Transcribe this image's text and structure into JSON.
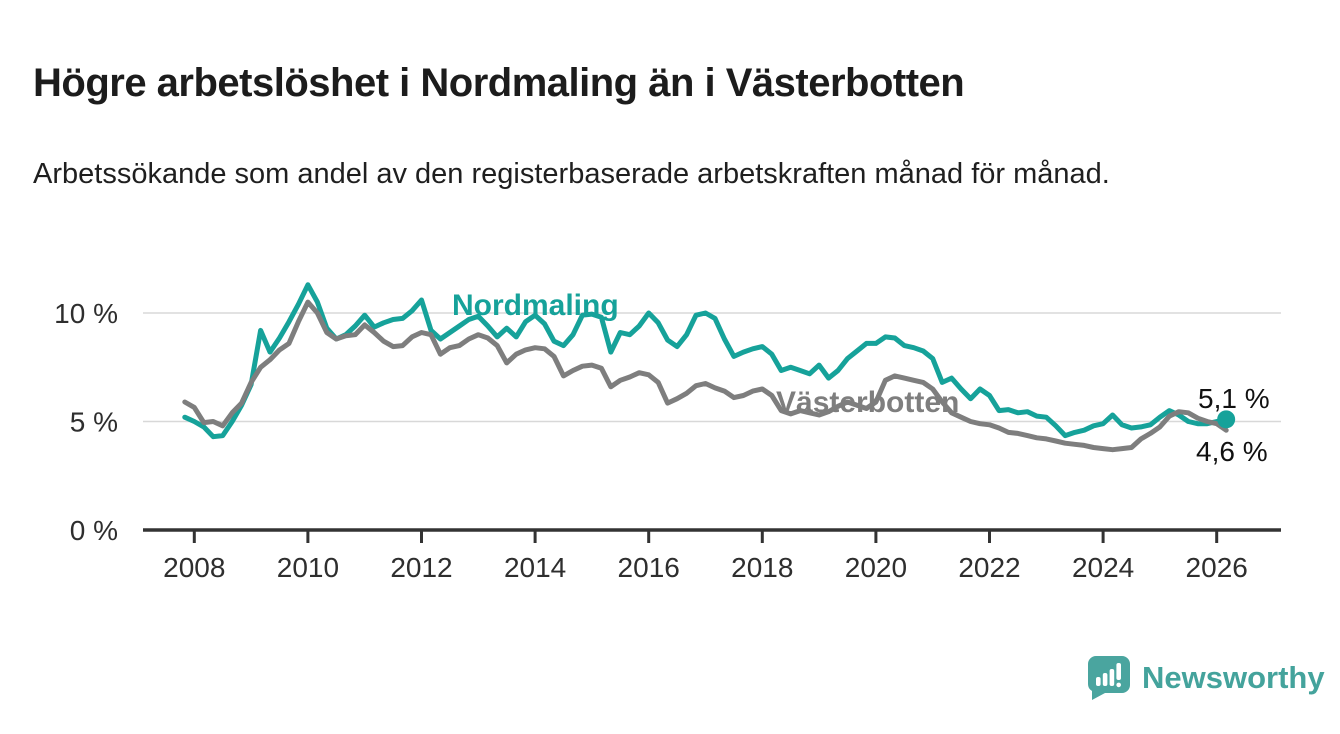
{
  "title": "Högre arbetslöshet i Nordmaling än i Västerbotten",
  "subtitle": "Arbetssökande som andel av den registerbaserade arbetskraften månad för månad.",
  "chart_data": {
    "type": "line",
    "unit": "%",
    "x_start": "2007-11",
    "x_step_months": 2,
    "x_end": "2026-03",
    "xlim": [
      2007.1,
      2027.1
    ],
    "ylim": [
      0,
      11.6
    ],
    "grid": "horizontal",
    "legend_position": "inline-labels",
    "xticks": [
      "2008",
      "2010",
      "2012",
      "2014",
      "2016",
      "2018",
      "2020",
      "2022",
      "2024",
      "2026"
    ],
    "yticks": [
      {
        "value": 0,
        "label": "0 %"
      },
      {
        "value": 5,
        "label": "5 %"
      },
      {
        "value": 10,
        "label": "10 %"
      }
    ],
    "series": [
      {
        "name": "Nordmaling",
        "color": "#16a29a",
        "end_label": "5,1 %",
        "end_value": 5.1,
        "values": [
          5.2,
          5.0,
          4.75,
          4.3,
          4.35,
          5.0,
          5.75,
          6.7,
          9.2,
          8.2,
          8.85,
          9.6,
          10.4,
          11.3,
          10.5,
          9.3,
          8.8,
          9.0,
          9.4,
          9.9,
          9.35,
          9.55,
          9.7,
          9.75,
          10.1,
          10.6,
          9.2,
          8.8,
          9.1,
          9.4,
          9.7,
          9.85,
          9.4,
          8.9,
          9.3,
          8.9,
          9.6,
          9.9,
          9.5,
          8.7,
          8.5,
          9.0,
          9.9,
          9.95,
          9.8,
          8.2,
          9.1,
          9.0,
          9.4,
          10.0,
          9.55,
          8.75,
          8.45,
          9.0,
          9.9,
          10.0,
          9.75,
          8.8,
          8.0,
          8.2,
          8.35,
          8.45,
          8.1,
          7.35,
          7.5,
          7.35,
          7.2,
          7.6,
          7.0,
          7.35,
          7.9,
          8.25,
          8.6,
          8.6,
          8.9,
          8.85,
          8.5,
          8.4,
          8.25,
          7.9,
          6.8,
          7.0,
          6.5,
          6.05,
          6.5,
          6.2,
          5.5,
          5.55,
          5.4,
          5.45,
          5.25,
          5.2,
          4.8,
          4.35,
          4.5,
          4.6,
          4.8,
          4.9,
          5.3,
          4.85,
          4.7,
          4.75,
          4.85,
          5.2,
          5.5,
          5.3,
          5.0,
          4.9,
          4.9,
          5.0,
          5.1
        ]
      },
      {
        "name": "Västerbotten",
        "color": "#7e7e7e",
        "end_label": "4,6 %",
        "end_value": 4.6,
        "values": [
          5.9,
          5.65,
          4.95,
          5.0,
          4.8,
          5.4,
          5.85,
          6.8,
          7.5,
          7.85,
          8.3,
          8.6,
          9.6,
          10.5,
          10.0,
          9.1,
          8.8,
          8.95,
          9.0,
          9.45,
          9.1,
          8.7,
          8.45,
          8.5,
          8.9,
          9.1,
          9.0,
          8.1,
          8.4,
          8.5,
          8.8,
          9.0,
          8.85,
          8.5,
          7.7,
          8.1,
          8.3,
          8.4,
          8.35,
          8.0,
          7.1,
          7.35,
          7.55,
          7.6,
          7.45,
          6.6,
          6.9,
          7.05,
          7.25,
          7.15,
          6.8,
          5.85,
          6.05,
          6.3,
          6.65,
          6.75,
          6.55,
          6.4,
          6.1,
          6.2,
          6.4,
          6.5,
          6.2,
          5.5,
          5.35,
          5.5,
          5.4,
          5.3,
          5.45,
          5.7,
          5.9,
          5.75,
          5.6,
          5.9,
          6.9,
          7.1,
          7.0,
          6.9,
          6.8,
          6.5,
          5.9,
          5.4,
          5.2,
          5.0,
          4.9,
          4.85,
          4.7,
          4.5,
          4.45,
          4.35,
          4.25,
          4.2,
          4.1,
          4.0,
          3.95,
          3.9,
          3.8,
          3.75,
          3.7,
          3.75,
          3.8,
          4.2,
          4.45,
          4.75,
          5.25,
          5.45,
          5.4,
          5.15,
          5.0,
          4.9,
          4.6
        ]
      }
    ],
    "end_marker": {
      "series": "Nordmaling",
      "value": 5.1
    }
  },
  "labels": {
    "nordmaling": "Nordmaling",
    "vasterbotten": "Västerbotten",
    "end_top": "5,1 %",
    "end_bottom": "4,6 %"
  },
  "branding": {
    "name": "Newsworthy",
    "accent_color": "#44a39c",
    "icon": "newsworthy-speech-bubble-bars-icon"
  }
}
